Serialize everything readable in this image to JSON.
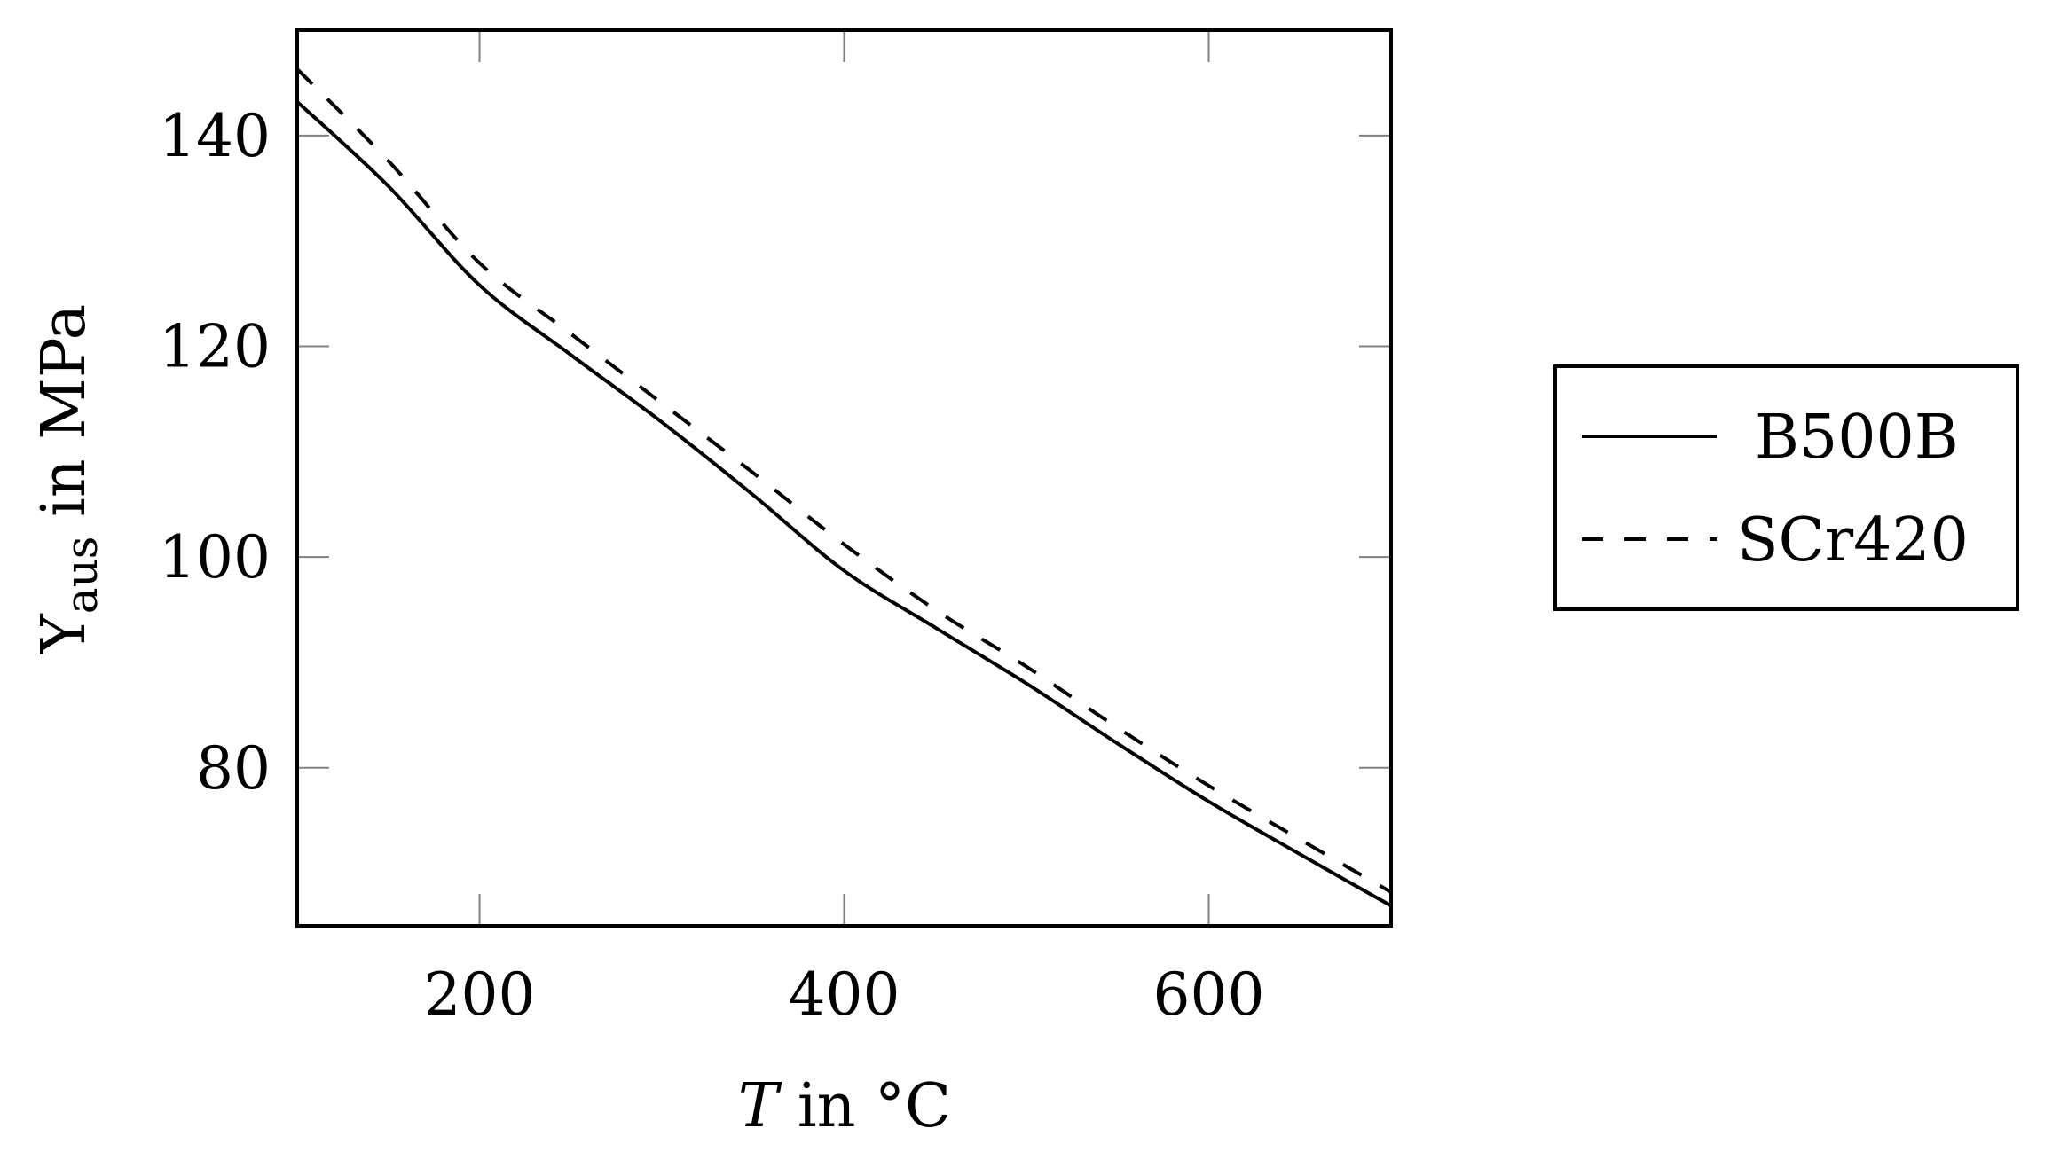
{
  "chart_data": {
    "type": "line",
    "title": "",
    "xlabel": "T in °C",
    "xlabel_parts": {
      "var": "T",
      "rest": " in °C"
    },
    "ylabel": "Υaus in MPa",
    "ylabel_parts": {
      "sym": "Υ",
      "sub": "aus",
      "rest": " in MPa"
    },
    "xlim": [
      100,
      700
    ],
    "ylim": [
      65,
      150
    ],
    "xticks": [
      200,
      400,
      600
    ],
    "yticks": [
      80,
      100,
      120,
      140
    ],
    "grid": false,
    "legend_position": "outside-right",
    "x": [
      100,
      150,
      200,
      250,
      300,
      350,
      400,
      450,
      500,
      550,
      600,
      650,
      700
    ],
    "series": [
      {
        "name": "B500B",
        "style": "solid",
        "color": "#000000",
        "values": [
          143.2,
          135.2,
          125.8,
          119.2,
          112.8,
          105.9,
          98.7,
          93.3,
          88.0,
          82.3,
          76.8,
          71.8,
          66.9
        ]
      },
      {
        "name": "SCr420",
        "style": "dashed",
        "color": "#000000",
        "values": [
          146.3,
          137.6,
          127.9,
          121.2,
          114.6,
          108.0,
          101.2,
          95.0,
          89.6,
          83.8,
          78.3,
          73.2,
          68.2
        ]
      }
    ]
  },
  "colors": {
    "axis": "#000000",
    "tick": "#808080",
    "background": "#ffffff"
  }
}
